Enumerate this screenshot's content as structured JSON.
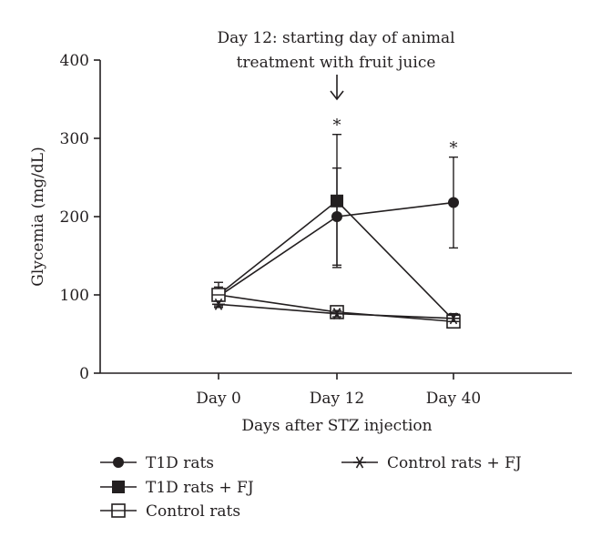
{
  "chart_data": {
    "type": "line",
    "categories": [
      "Day 0",
      "Day 12",
      "Day 40"
    ],
    "xlabel": "Days after STZ injection",
    "ylabel": "Glycemia (mg/dL)",
    "ylim": [
      0,
      400
    ],
    "yticks": [
      0,
      100,
      200,
      300,
      400
    ],
    "grid": false,
    "legend_position": "bottom",
    "series": [
      {
        "name": "T1D rats",
        "marker": "filled-circle",
        "values": [
          98,
          200,
          218
        ],
        "error": [
          12,
          62,
          58
        ],
        "significance": [
          "",
          "*",
          "*"
        ]
      },
      {
        "name": "T1D rats + FJ",
        "marker": "filled-square",
        "values": [
          100,
          220,
          68
        ],
        "error": [
          16,
          85,
          8
        ]
      },
      {
        "name": "Control rats",
        "marker": "open-square",
        "values": [
          100,
          78,
          66
        ],
        "error": [
          5,
          4,
          5
        ]
      },
      {
        "name": "Control rats + FJ",
        "marker": "asterisk",
        "values": [
          88,
          76,
          70
        ],
        "error": [
          4,
          4,
          4
        ]
      }
    ],
    "annotation": {
      "line1": "Day 12: starting day of animal",
      "line2": "treatment with fruit juice",
      "category": "Day 12",
      "arrow": "down"
    }
  }
}
